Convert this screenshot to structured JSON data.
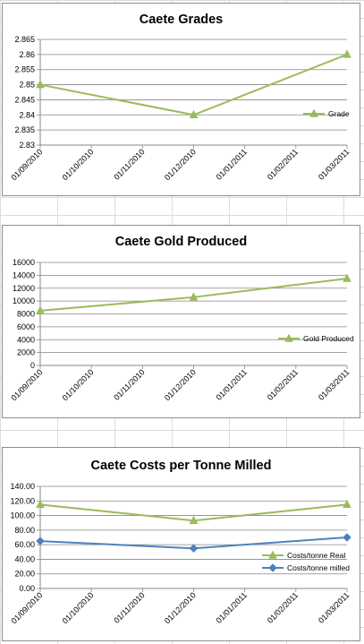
{
  "chart_data": [
    {
      "type": "line",
      "title": "Caete Grades",
      "x": [
        "01/09/2010",
        "01/10/2010",
        "01/11/2010",
        "01/12/2010",
        "01/01/2011",
        "01/02/2011",
        "01/03/2011"
      ],
      "ylim": [
        2.83,
        2.865
      ],
      "yticks": [
        "2.83",
        "2.835",
        "2.84",
        "2.845",
        "2.85",
        "2.855",
        "2.86",
        "2.865"
      ],
      "grid": true,
      "legend": "right",
      "series": [
        {
          "name": "Grade",
          "color": "#9bbb59",
          "marker": "triangle",
          "points": [
            {
              "x": "01/09/2010",
              "y": 2.85
            },
            {
              "x": "01/12/2010",
              "y": 2.84
            },
            {
              "x": "01/03/2011",
              "y": 2.86
            }
          ]
        }
      ]
    },
    {
      "type": "line",
      "title": "Caete  Gold Produced",
      "x": [
        "01/09/2010",
        "01/10/2010",
        "01/11/2010",
        "01/12/2010",
        "01/01/2011",
        "01/02/2011",
        "01/03/2011"
      ],
      "ylim": [
        0,
        16000
      ],
      "yticks": [
        "0",
        "2000",
        "4000",
        "6000",
        "8000",
        "10000",
        "12000",
        "14000",
        "16000"
      ],
      "grid": true,
      "legend": "right",
      "series": [
        {
          "name": "Gold Produced",
          "color": "#9bbb59",
          "marker": "triangle",
          "points": [
            {
              "x": "01/09/2010",
              "y": 8500
            },
            {
              "x": "01/12/2010",
              "y": 10600
            },
            {
              "x": "01/03/2011",
              "y": 13500
            }
          ]
        }
      ]
    },
    {
      "type": "line",
      "title": "Caete  Costs per Tonne Milled",
      "x": [
        "01/09/2010",
        "01/10/2010",
        "01/11/2010",
        "01/12/2010",
        "01/01/2011",
        "01/02/2011",
        "01/03/2011"
      ],
      "ylim": [
        0,
        140
      ],
      "yticks": [
        "0.00",
        "20.00",
        "40.00",
        "60.00",
        "80.00",
        "100.00",
        "120.00",
        "140.00"
      ],
      "grid": true,
      "legend": "right",
      "series": [
        {
          "name": "Costs/tonne Real",
          "color": "#9bbb59",
          "marker": "triangle",
          "points": [
            {
              "x": "01/09/2010",
              "y": 115
            },
            {
              "x": "01/12/2010",
              "y": 93
            },
            {
              "x": "01/03/2011",
              "y": 115
            }
          ]
        },
        {
          "name": "Costs/tonne milled",
          "color": "#4f81bd",
          "marker": "diamond",
          "points": [
            {
              "x": "01/09/2010",
              "y": 65
            },
            {
              "x": "01/12/2010",
              "y": 55
            },
            {
              "x": "01/03/2011",
              "y": 70
            }
          ]
        }
      ]
    }
  ]
}
